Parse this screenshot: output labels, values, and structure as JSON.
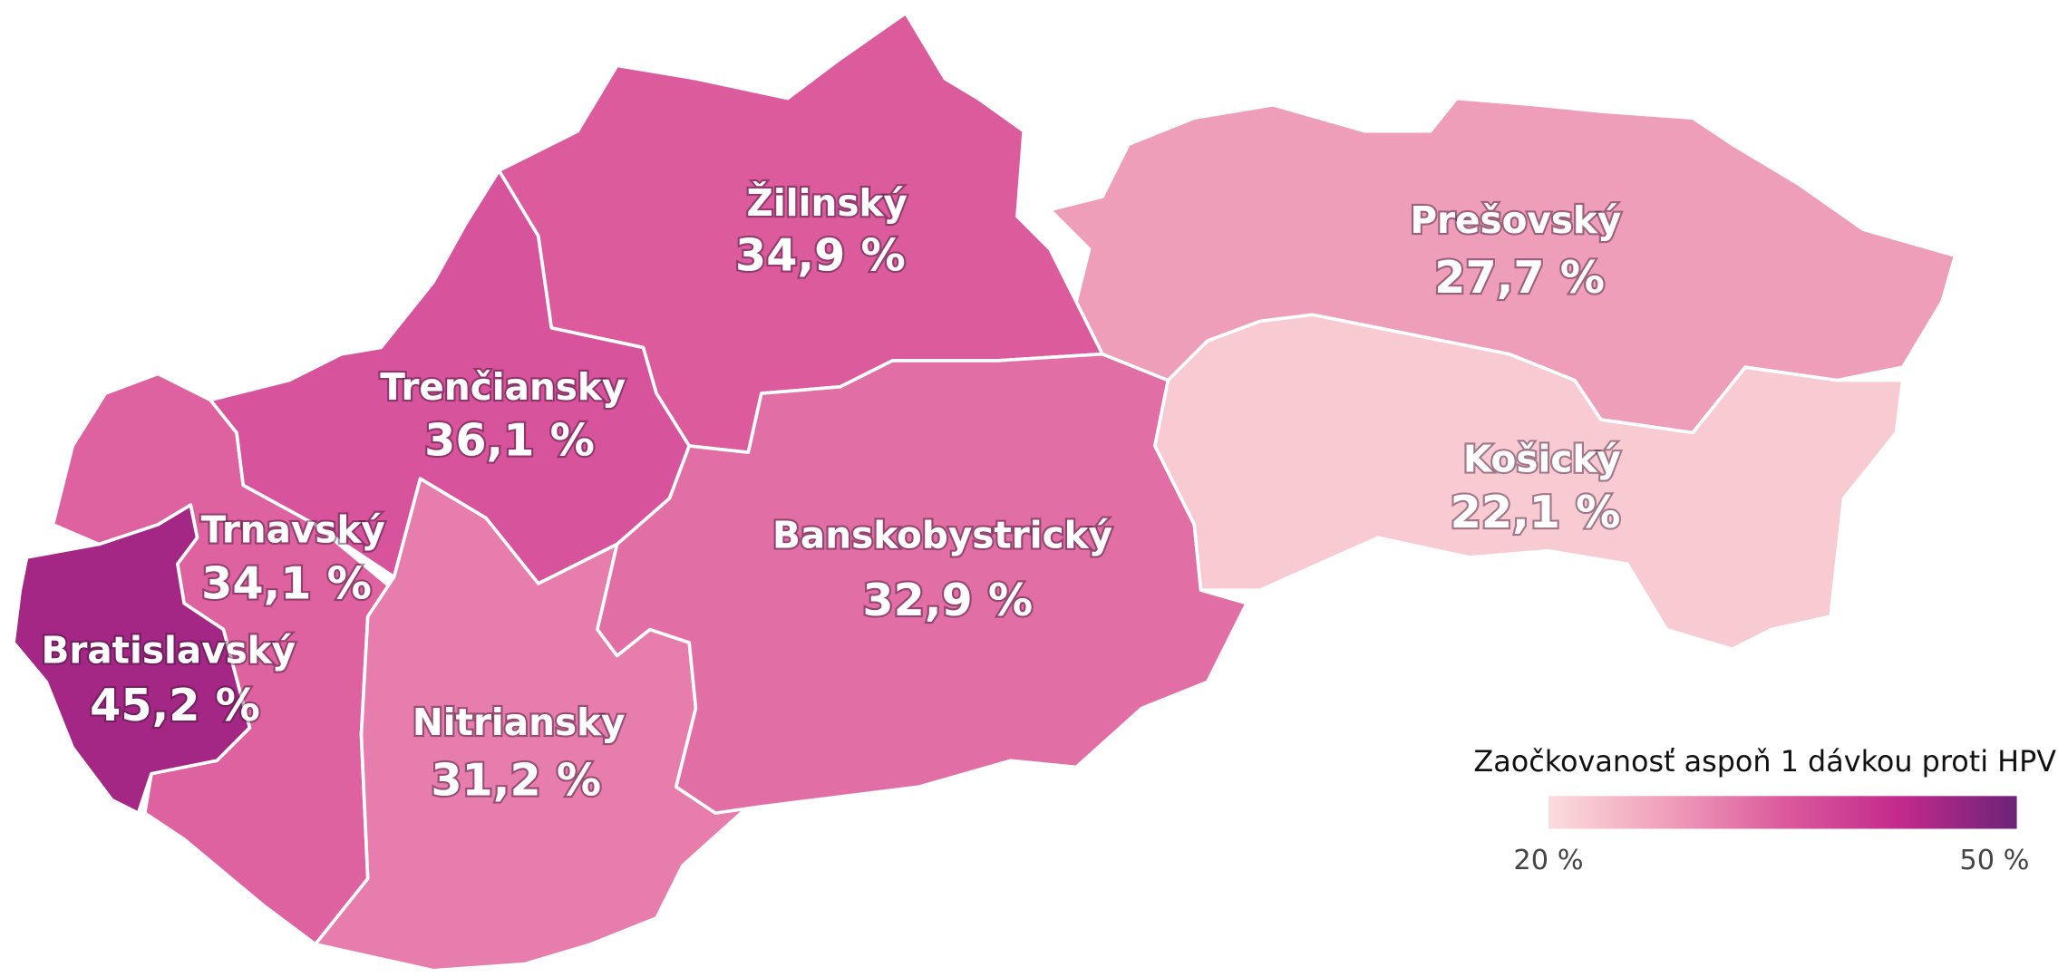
{
  "map": {
    "regions": [
      {
        "name": "Bratislavský",
        "value": 45.2,
        "label": "45,2 %"
      },
      {
        "name": "Trnavský",
        "value": 34.1,
        "label": "34,1 %"
      },
      {
        "name": "Trenčiansky",
        "value": 36.1,
        "label": "36,1 %"
      },
      {
        "name": "Nitriansky",
        "value": 31.2,
        "label": "31,2 %"
      },
      {
        "name": "Žilinský",
        "value": 34.9,
        "label": "34,9 %"
      },
      {
        "name": "Banskobystrický",
        "value": 32.9,
        "label": "32,9 %"
      },
      {
        "name": "Prešovský",
        "value": 27.7,
        "label": "27,7 %"
      },
      {
        "name": "Košický",
        "value": 22.1,
        "label": "22,1 %"
      }
    ],
    "legend": {
      "title": "Zaočkovanosť aspoň 1 dávkou proti HPV",
      "min": {
        "value": 20,
        "label": "20 %"
      },
      "max": {
        "value": 50,
        "label": "50 %"
      },
      "colors": [
        "#fbdcdc",
        "#f0a0ba",
        "#db5a9d",
        "#c32a8c",
        "#6c2378"
      ]
    }
  }
}
